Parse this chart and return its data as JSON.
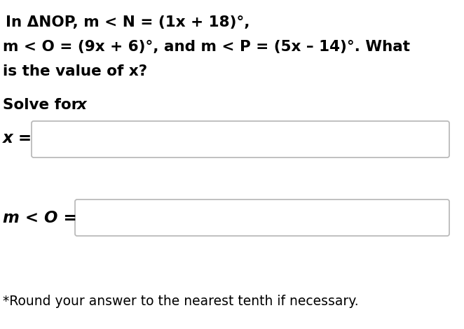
{
  "bg_color": "#ffffff",
  "text_color": "#000000",
  "box_edge_color": "#bbbbbb",
  "line1": "In ΔNOP, m < N = (1x + 18)°,",
  "line2": "m < O = (9x + 6)°, and m < P = (5x – 14)°. What",
  "line3": "is the value of x?",
  "solve_label": "Solve for x",
  "x_label": "x =",
  "mo_label": "m < O =",
  "footnote": "*Round your answer to the nearest tenth if necessary.",
  "fontsize_main": 15.5,
  "fontsize_solve": 15.5,
  "fontsize_footnote": 13.5
}
